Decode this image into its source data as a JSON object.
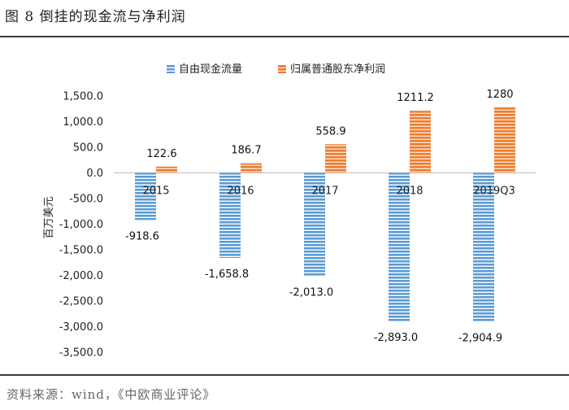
{
  "figure_title": "图 8  倒挂的现金流与净利润",
  "source_note": "资料来源：wind，《中欧商业评论》",
  "colors": {
    "free_cash_flow": "#5b9bd5",
    "net_profit": "#ed7d31",
    "free_cash_flow_stripe": "#ffffff",
    "net_profit_stripe": "#fbe3cf"
  },
  "chart_data": {
    "type": "bar",
    "title": "",
    "xlabel": "",
    "ylabel": "百万美元",
    "categories": [
      "2015",
      "2016",
      "2017",
      "2018",
      "2019Q3"
    ],
    "series": [
      {
        "name": "自由现金流量",
        "values": [
          -918.6,
          -1658.8,
          -2013.0,
          -2893.0,
          -2904.9
        ],
        "labels": [
          "-918.6",
          "-1,658.8",
          "-2,013.0",
          "-2,893.0",
          "-2,904.9"
        ]
      },
      {
        "name": "归属普通股东净利润",
        "values": [
          122.6,
          186.7,
          558.9,
          1211.2,
          1280
        ],
        "labels": [
          "122.6",
          "186.7",
          "558.9",
          "1211.2",
          "1280"
        ]
      }
    ],
    "ylim": [
      -3500,
      1500
    ],
    "yticks": [
      1500,
      1000,
      500,
      0,
      -500,
      -1000,
      -1500,
      -2000,
      -2500,
      -3000,
      -3500
    ],
    "ytick_labels": [
      "1,500.0",
      "1,000.0",
      "500.0",
      "0.0",
      "-500.0",
      "-1,000.0",
      "-1,500.0",
      "-2,000.0",
      "-2,500.0",
      "-3,000.0",
      "-3,500.0"
    ],
    "legend_position": "top",
    "grid": false
  }
}
